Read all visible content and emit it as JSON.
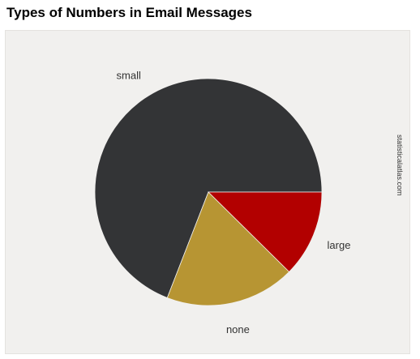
{
  "chart_data": {
    "type": "pie",
    "title": "Types of Numbers in Email Messages",
    "categories": [
      "small",
      "none",
      "large"
    ],
    "values": [
      69.1,
      18.5,
      12.4
    ],
    "colors": [
      "#333436",
      "#b79533",
      "#b20000"
    ],
    "legend": "none"
  },
  "source": "statisticalatlas.com"
}
